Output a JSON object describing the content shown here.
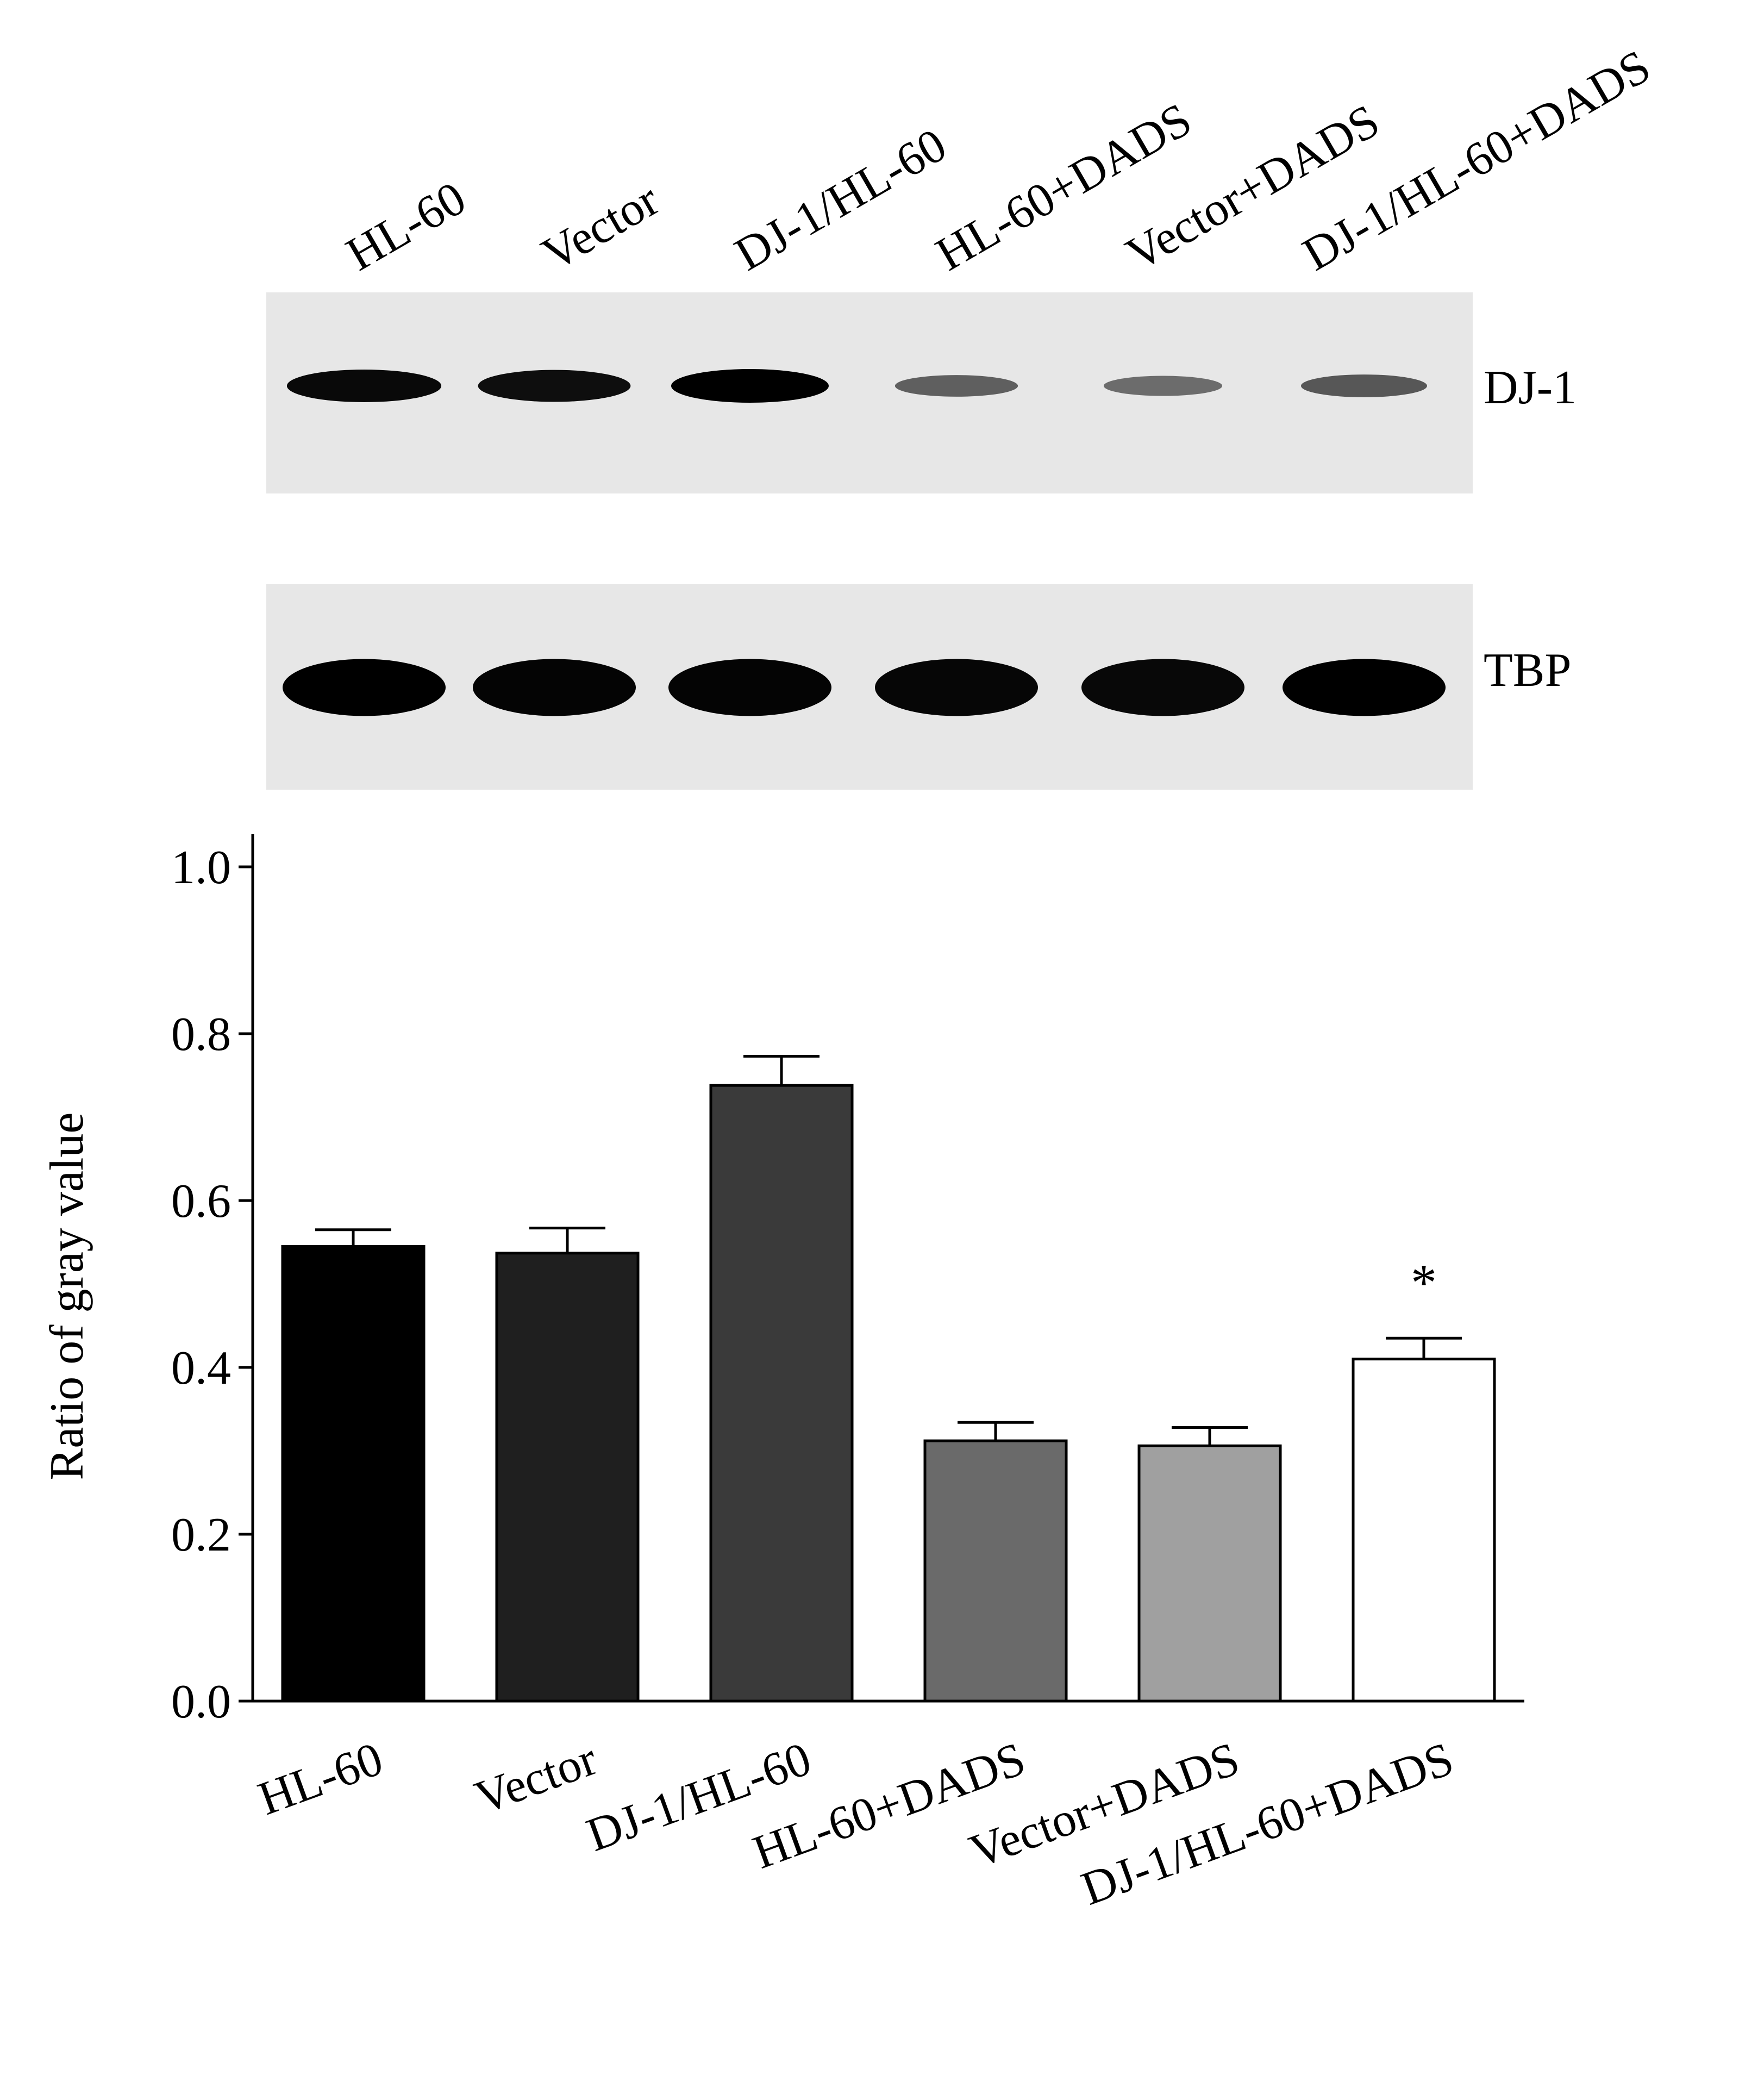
{
  "blot": {
    "lane_labels": [
      "HL-60",
      "Vector",
      "DJ-1/HL-60",
      "HL-60+DADS",
      "Vector+DADS",
      "DJ-1/HL-60+DADS"
    ],
    "rows": [
      {
        "label": "DJ-1",
        "band_intensity": [
          0.95,
          0.92,
          1.0,
          0.45,
          0.38,
          0.5
        ]
      },
      {
        "label": "TBP",
        "band_intensity": [
          1.0,
          0.98,
          0.98,
          0.97,
          0.96,
          1.0
        ]
      }
    ]
  },
  "chart_data": {
    "type": "bar",
    "categories": [
      "HL-60",
      "Vector",
      "DJ-1/HL-60",
      "HL-60+DADS",
      "Vector+DADS",
      "DJ-1/HL-60+DADS"
    ],
    "values": [
      0.545,
      0.537,
      0.738,
      0.312,
      0.306,
      0.41
    ],
    "errors": [
      0.02,
      0.03,
      0.035,
      0.022,
      0.022,
      0.025
    ],
    "bar_colors": [
      "#000000",
      "#1f1f1f",
      "#3a3a3a",
      "#6a6a6a",
      "#a0a0a0",
      "#ffffff"
    ],
    "annotations": [
      "",
      "",
      "",
      "",
      "",
      "*"
    ],
    "title": "",
    "xlabel": "",
    "ylabel": "Ratio of gray value",
    "ylim": [
      0,
      1.0
    ],
    "yticks": [
      "0.0",
      "0.2",
      "0.4",
      "0.6",
      "0.8",
      "1.0"
    ],
    "grid": false
  }
}
